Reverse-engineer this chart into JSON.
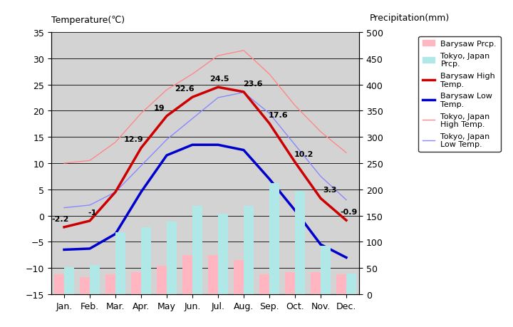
{
  "months": [
    "Jan.",
    "Feb.",
    "Mar.",
    "Apr.",
    "May",
    "Jun.",
    "Jul.",
    "Aug.",
    "Sep.",
    "Oct.",
    "Nov.",
    "Dec."
  ],
  "barysaw_high": [
    -2.2,
    -1.0,
    4.5,
    12.9,
    19.0,
    22.6,
    24.5,
    23.6,
    17.6,
    10.2,
    3.3,
    -0.9
  ],
  "barysaw_low": [
    -6.5,
    -6.3,
    -3.5,
    4.5,
    11.5,
    13.5,
    13.5,
    12.5,
    7.0,
    1.0,
    -5.5,
    -8.0
  ],
  "tokyo_high": [
    10.0,
    10.5,
    14.0,
    19.5,
    24.0,
    27.0,
    30.5,
    31.5,
    27.0,
    21.0,
    16.0,
    12.0
  ],
  "tokyo_low": [
    1.5,
    2.0,
    4.5,
    9.5,
    14.5,
    18.5,
    22.5,
    23.5,
    19.5,
    13.5,
    7.5,
    3.0
  ],
  "barysaw_prcp_mm": [
    38,
    33,
    38,
    42,
    55,
    75,
    75,
    65,
    38,
    42,
    42,
    38
  ],
  "tokyo_prcp_mm": [
    52,
    56,
    118,
    128,
    138,
    168,
    153,
    168,
    212,
    197,
    92,
    40
  ],
  "temp_min": -15,
  "temp_max": 35,
  "prcp_min": 0,
  "prcp_max": 500,
  "bg_color": "#d3d3d3",
  "barysaw_high_color": "#cc0000",
  "barysaw_low_color": "#0000cc",
  "tokyo_high_color": "#ff8888",
  "tokyo_low_color": "#8888ff",
  "barysaw_prcp_color": "#ffb6c1",
  "tokyo_prcp_color": "#b0e8e8",
  "title_left": "Temperature(℃)",
  "title_right": "Precipitation(mm)",
  "barysaw_high_labels": {
    "0": "-2.2",
    "1": "-1",
    "3": "12.9",
    "4": "19",
    "5": "22.6",
    "6": "24.5",
    "7": "23.6",
    "8": "17.6",
    "9": "10.2",
    "10": "3.3",
    "11": "-0.9"
  }
}
